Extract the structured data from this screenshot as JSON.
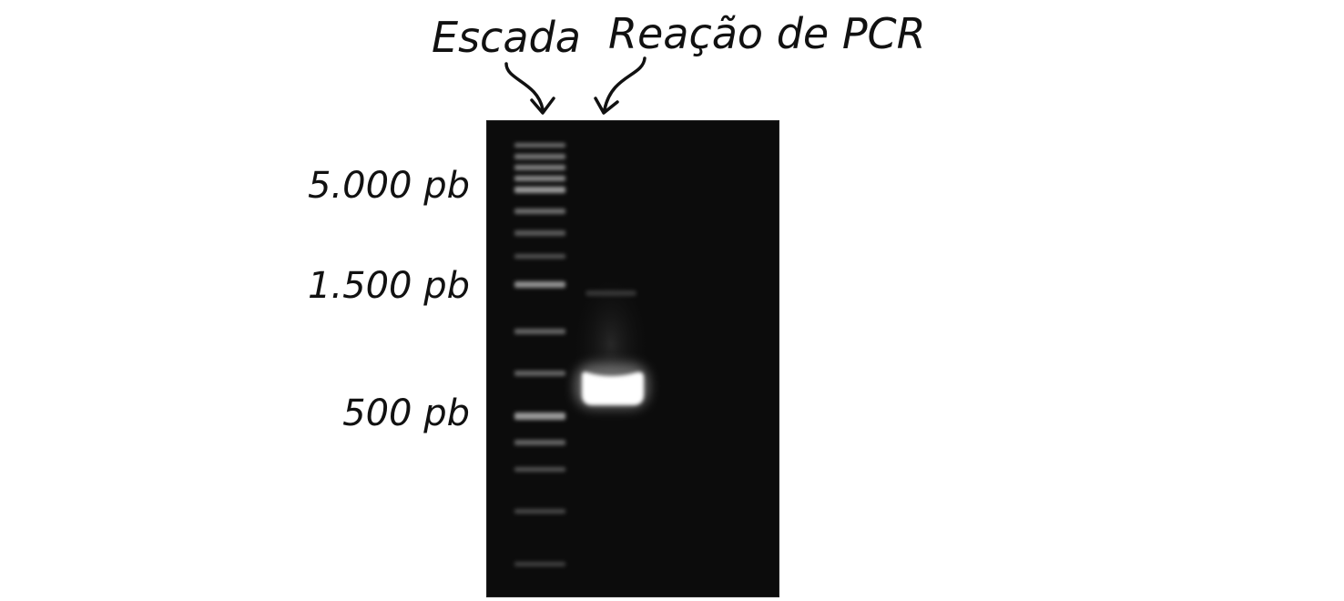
{
  "lane_labels": {
    "ladder": "Escada",
    "pcr": "Reação de PCR"
  },
  "size_markers": [
    {
      "label": "5.000 pb"
    },
    {
      "label": "1.500 pb"
    },
    {
      "label": "500 pb"
    }
  ],
  "colors": {
    "background": "#ffffff",
    "gel": "#0c0c0c",
    "band": "#ffffff",
    "text": "#111111"
  }
}
